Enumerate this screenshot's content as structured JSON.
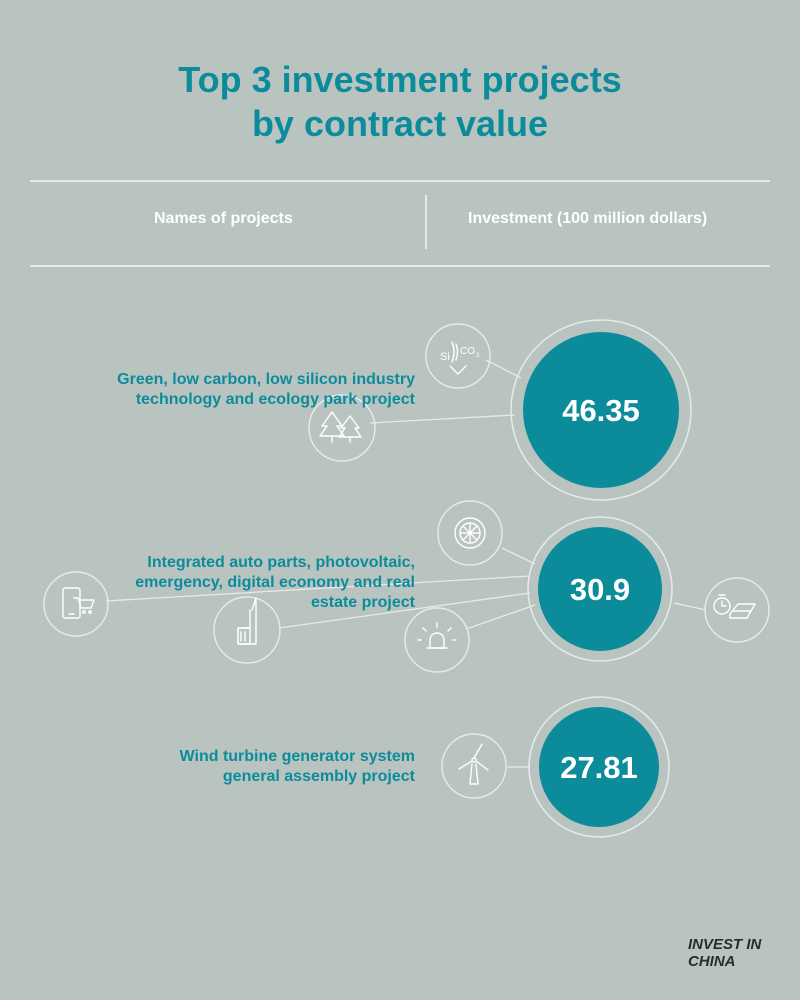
{
  "title": {
    "line1": "Top 3 investment projects",
    "line2": "by contract value"
  },
  "columns": {
    "names": "Names of projects",
    "investment": "Investment (100 million dollars)"
  },
  "projects": [
    {
      "name_lines": [
        "Green, low carbon, low silicon industry",
        "technology and ecology park project"
      ],
      "value": "46.35",
      "icons": [
        "silicon-co2-icon",
        "pine-trees-icon"
      ]
    },
    {
      "name_lines": [
        "Integrated auto parts, photovoltaic,",
        "emergency, digital economy and real",
        "estate project"
      ],
      "value": "30.9",
      "icons": [
        "wheel-icon",
        "mobile-shopping-icon",
        "factory-icon",
        "emergency-light-icon",
        "solar-panel-icon"
      ]
    },
    {
      "name_lines": [
        "Wind turbine generator system",
        "general assembly project"
      ],
      "value": "27.81",
      "icons": [
        "wind-turbine-icon"
      ]
    }
  ],
  "brand": {
    "line1": "INVEST IN",
    "line2": "CHINA"
  },
  "colors": {
    "accent": "#0c8c9a",
    "background": "#b9c4c1",
    "line": "#e6ebea",
    "brand_arrow": "#e23b2f"
  },
  "chart_data": {
    "type": "bubble",
    "title": "Top 3 investment projects by contract value",
    "xlabel": "Names of projects",
    "ylabel": "Investment (100 million dollars)",
    "categories": [
      "Green, low carbon, low silicon industry technology and ecology park project",
      "Integrated auto parts, photovoltaic, emergency, digital economy and real estate project",
      "Wind turbine generator system general assembly project"
    ],
    "values": [
      46.35,
      30.9,
      27.81
    ]
  }
}
